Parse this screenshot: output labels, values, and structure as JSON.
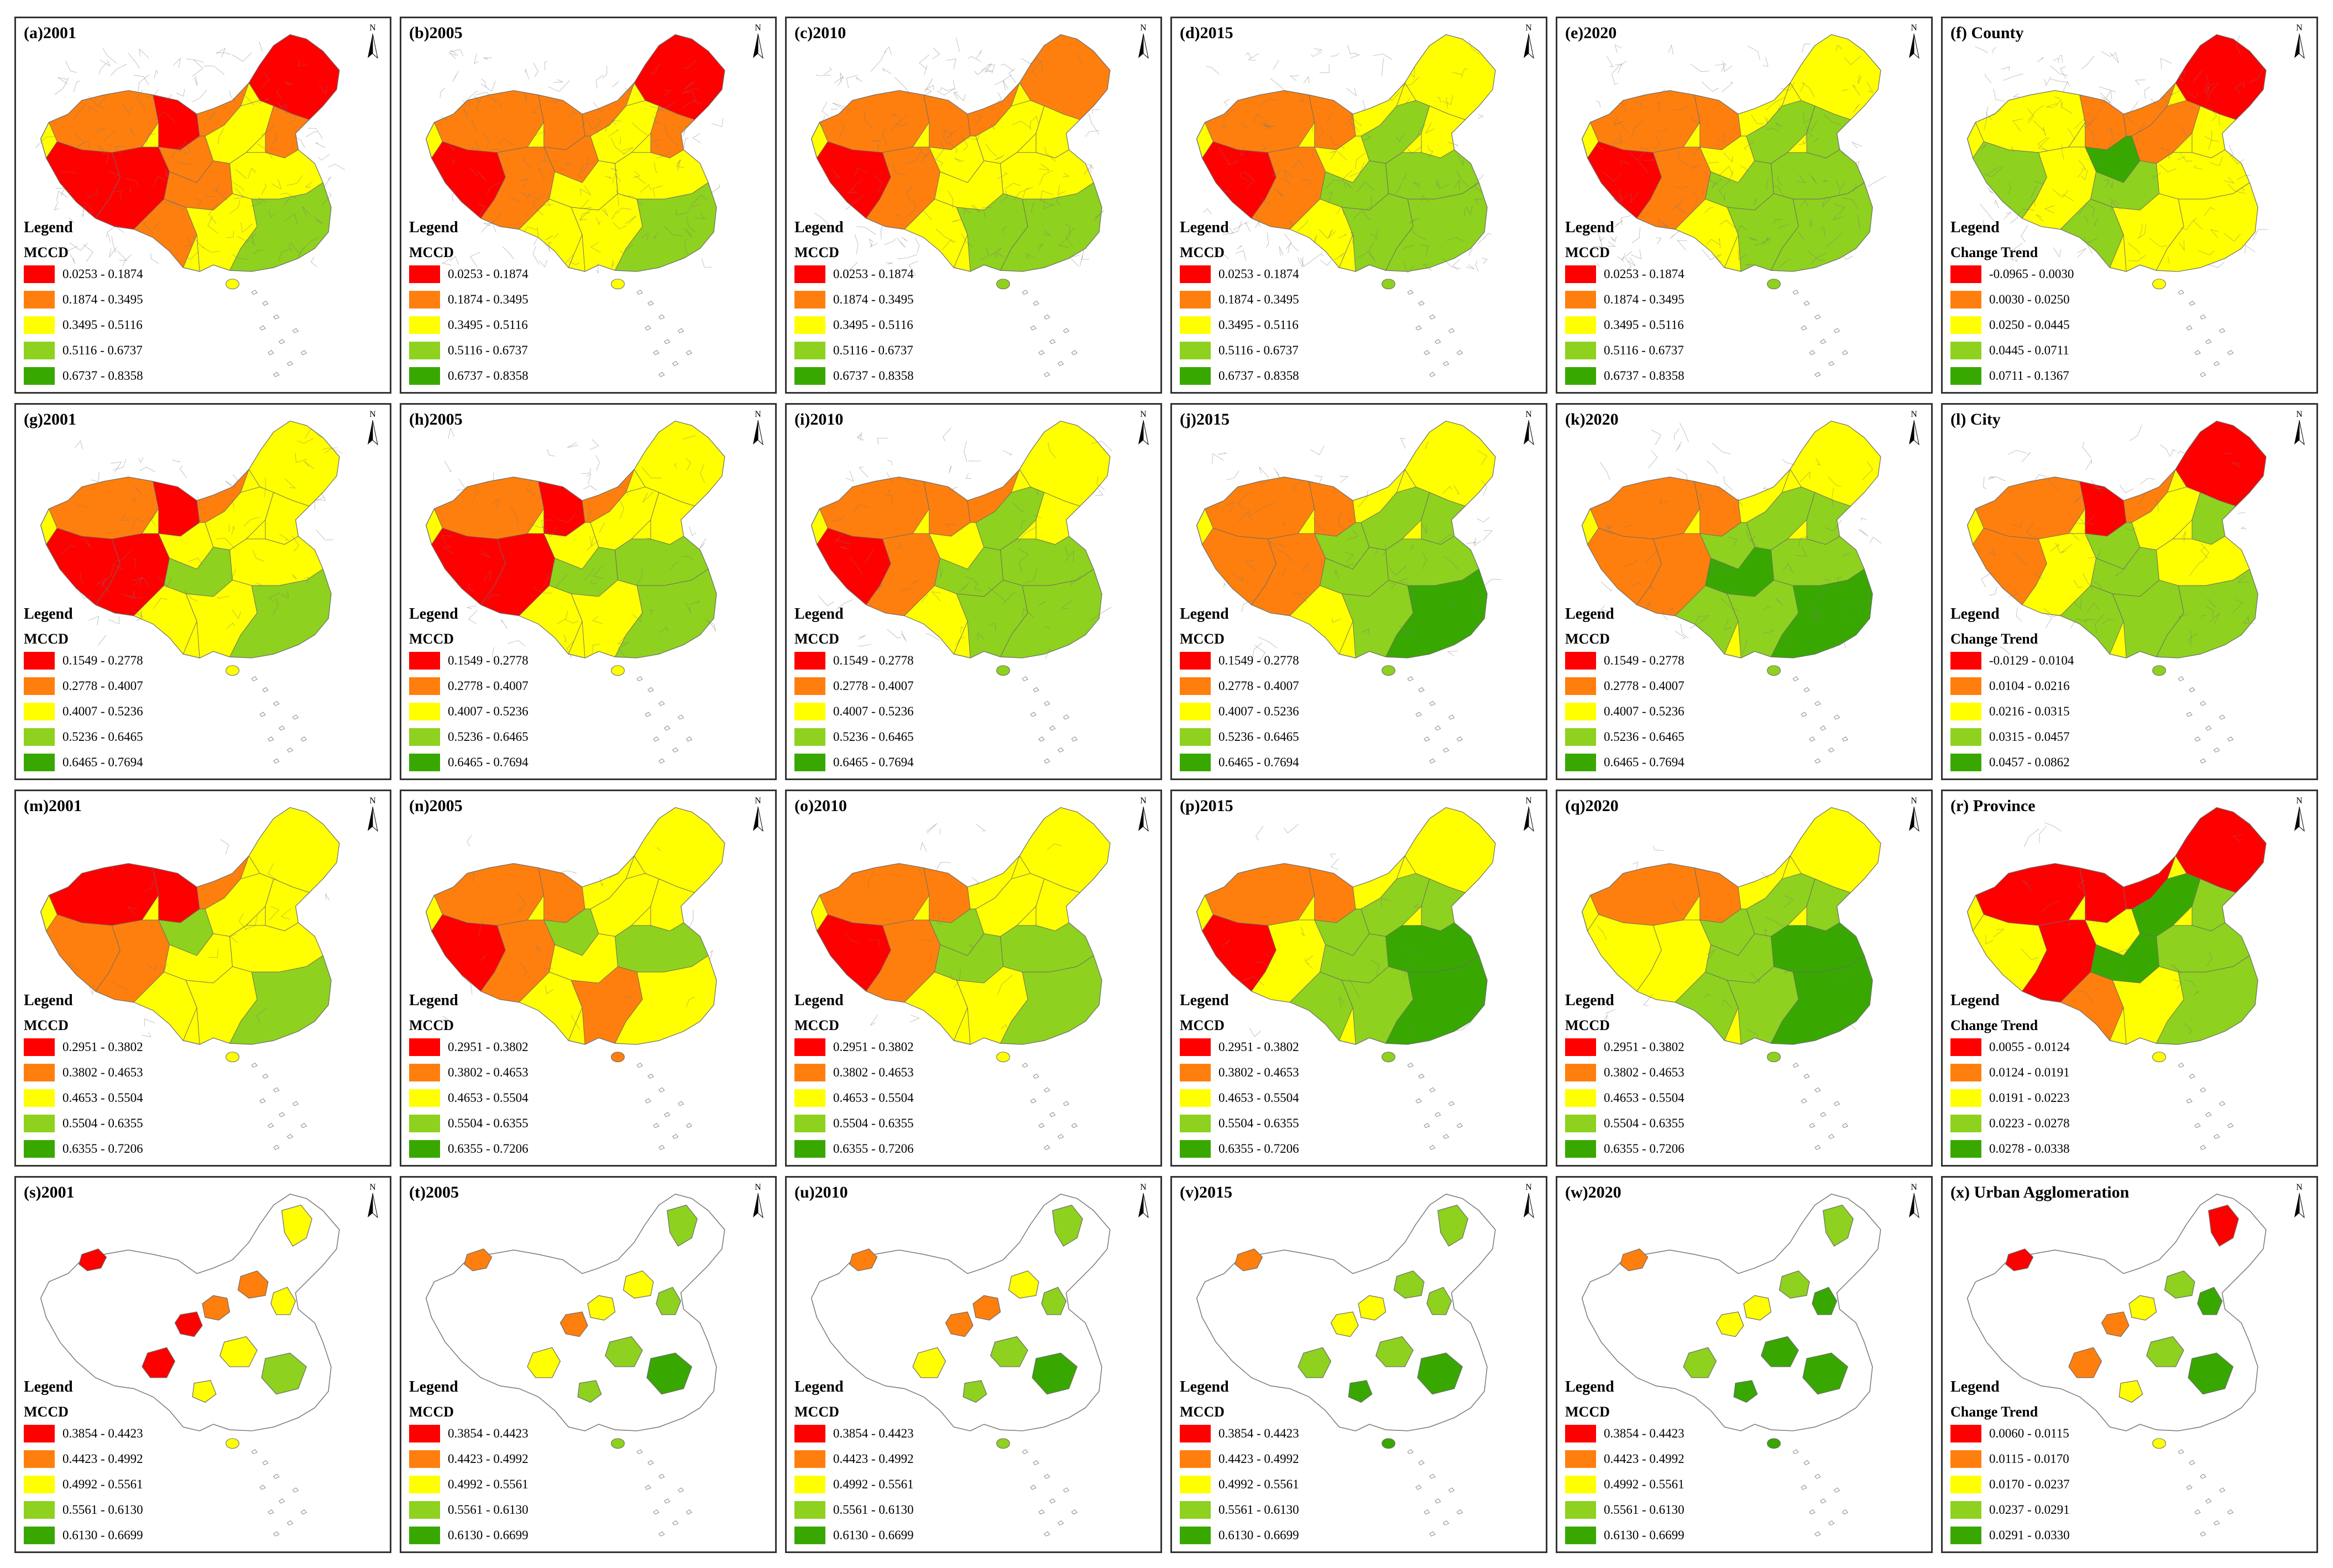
{
  "colors": [
    "#ff0000",
    "#ff7f0e",
    "#ffff00",
    "#8ed11f",
    "#38a800"
  ],
  "legend_title": "Legend",
  "north_label": "N",
  "rows": [
    {
      "level": "county",
      "legend_ranges": [
        "0.0253 - 0.1874",
        "0.1874 - 0.3495",
        "0.3495 - 0.5116",
        "0.5116 - 0.6737",
        "0.6737 - 0.8358"
      ],
      "trend_ranges": [
        "-0.0965 - 0.0030",
        "0.0030 - 0.0250",
        "0.0250 - 0.0445",
        "0.0445 - 0.0711",
        "0.0711 - 0.1367"
      ],
      "panels": [
        {
          "title": "(a)2001",
          "subtitle": "MCCD",
          "region_classes": [
            1,
            0,
            0,
            0,
            1,
            0,
            1,
            2,
            1,
            1,
            2,
            1,
            2,
            3
          ]
        },
        {
          "title": "(b)2005",
          "subtitle": "MCCD",
          "region_classes": [
            1,
            1,
            0,
            1,
            1,
            0,
            1,
            2,
            1,
            2,
            2,
            2,
            2,
            3
          ]
        },
        {
          "title": "(c)2010",
          "subtitle": "MCCD",
          "region_classes": [
            1,
            1,
            0,
            1,
            1,
            1,
            2,
            2,
            2,
            2,
            2,
            2,
            3,
            3
          ]
        },
        {
          "title": "(d)2015",
          "subtitle": "MCCD",
          "region_classes": [
            1,
            1,
            0,
            1,
            2,
            2,
            2,
            3,
            2,
            3,
            3,
            2,
            3,
            3
          ]
        },
        {
          "title": "(e)2020",
          "subtitle": "MCCD",
          "region_classes": [
            1,
            1,
            0,
            1,
            2,
            2,
            2,
            3,
            3,
            3,
            3,
            2,
            3,
            3
          ]
        },
        {
          "title": "(f) County",
          "subtitle": "Change Trend",
          "trend": true,
          "region_classes": [
            2,
            1,
            3,
            2,
            1,
            0,
            4,
            1,
            2,
            3,
            2,
            3,
            2,
            2
          ]
        }
      ]
    },
    {
      "level": "city",
      "legend_ranges": [
        "0.1549 - 0.2778",
        "0.2778 - 0.4007",
        "0.4007 - 0.5236",
        "0.5236 - 0.6465",
        "0.6465 - 0.7694"
      ],
      "trend_ranges": [
        "-0.0129 - 0.0104",
        "0.0104 - 0.0216",
        "0.0216 - 0.0315",
        "0.0315 - 0.0457",
        "0.0457 - 0.0862"
      ],
      "panels": [
        {
          "title": "(g)2001",
          "subtitle": "MCCD",
          "region_classes": [
            1,
            0,
            0,
            0,
            1,
            2,
            2,
            2,
            2,
            3,
            2,
            2,
            2,
            3
          ]
        },
        {
          "title": "(h)2005",
          "subtitle": "MCCD",
          "region_classes": [
            1,
            0,
            0,
            0,
            1,
            2,
            2,
            2,
            2,
            3,
            3,
            2,
            2,
            3
          ]
        },
        {
          "title": "(i)2010",
          "subtitle": "MCCD",
          "region_classes": [
            1,
            1,
            0,
            1,
            1,
            2,
            2,
            3,
            2,
            3,
            3,
            2,
            3,
            3
          ]
        },
        {
          "title": "(j)2015",
          "subtitle": "MCCD",
          "region_classes": [
            1,
            1,
            1,
            1,
            2,
            2,
            3,
            3,
            3,
            3,
            3,
            2,
            3,
            4
          ]
        },
        {
          "title": "(k)2020",
          "subtitle": "MCCD",
          "region_classes": [
            1,
            1,
            1,
            1,
            2,
            2,
            3,
            3,
            3,
            4,
            3,
            3,
            3,
            4
          ]
        },
        {
          "title": "(l) City",
          "subtitle": "Change Trend",
          "trend": true,
          "region_classes": [
            1,
            0,
            1,
            2,
            1,
            0,
            3,
            2,
            3,
            3,
            2,
            3,
            3,
            3
          ]
        }
      ]
    },
    {
      "level": "province",
      "legend_ranges": [
        "0.2951 - 0.3802",
        "0.3802 - 0.4653",
        "0.4653 - 0.5504",
        "0.5504 - 0.6355",
        "0.6355 - 0.7206"
      ],
      "trend_ranges": [
        "0.0055 - 0.0124",
        "0.0124 - 0.0191",
        "0.0191 - 0.0223",
        "0.0223 - 0.0278",
        "0.0278 - 0.0338"
      ],
      "panels": [
        {
          "title": "(m)2001",
          "subtitle": "MCCD",
          "region_classes": [
            0,
            0,
            1,
            1,
            1,
            2,
            3,
            2,
            2,
            2,
            2,
            2,
            2,
            3
          ]
        },
        {
          "title": "(n)2005",
          "subtitle": "MCCD",
          "region_classes": [
            1,
            1,
            0,
            1,
            2,
            2,
            3,
            2,
            2,
            2,
            3,
            2,
            1,
            2
          ]
        },
        {
          "title": "(o)2010",
          "subtitle": "MCCD",
          "region_classes": [
            1,
            1,
            0,
            1,
            2,
            2,
            3,
            2,
            2,
            3,
            3,
            2,
            2,
            3
          ]
        },
        {
          "title": "(p)2015",
          "subtitle": "MCCD",
          "region_classes": [
            1,
            1,
            0,
            2,
            2,
            2,
            3,
            3,
            3,
            3,
            4,
            3,
            3,
            4
          ]
        },
        {
          "title": "(q)2020",
          "subtitle": "MCCD",
          "region_classes": [
            1,
            1,
            2,
            2,
            2,
            2,
            3,
            3,
            3,
            3,
            4,
            3,
            3,
            4
          ]
        },
        {
          "title": "(r) Province",
          "subtitle": "Change Trend",
          "trend": true,
          "region_classes": [
            0,
            0,
            2,
            0,
            0,
            0,
            2,
            4,
            3,
            4,
            3,
            1,
            2,
            3
          ]
        }
      ]
    },
    {
      "level": "urban-agglomeration",
      "legend_ranges": [
        "0.3854 - 0.4423",
        "0.4423 - 0.4992",
        "0.4992 - 0.5561",
        "0.5561 - 0.6130",
        "0.6130 - 0.6699"
      ],
      "trend_ranges": [
        "0.0060 - 0.0115",
        "0.0115 - 0.0170",
        "0.0170 - 0.0237",
        "0.0237 - 0.0291",
        "0.0291 - 0.0330"
      ],
      "panels": [
        {
          "title": "(s)2001",
          "subtitle": "MCCD",
          "region_classes": [
            0,
            2,
            1,
            0,
            1,
            0,
            2,
            2,
            2,
            3
          ]
        },
        {
          "title": "(t)2005",
          "subtitle": "MCCD",
          "region_classes": [
            1,
            3,
            2,
            1,
            2,
            2,
            3,
            3,
            3,
            4
          ]
        },
        {
          "title": "(u)2010",
          "subtitle": "MCCD",
          "region_classes": [
            1,
            3,
            1,
            1,
            2,
            2,
            3,
            3,
            3,
            4
          ]
        },
        {
          "title": "(v)2015",
          "subtitle": "MCCD",
          "region_classes": [
            1,
            3,
            2,
            2,
            3,
            3,
            3,
            3,
            4,
            4
          ]
        },
        {
          "title": "(w)2020",
          "subtitle": "MCCD",
          "region_classes": [
            1,
            3,
            2,
            2,
            3,
            3,
            4,
            4,
            4,
            4
          ]
        },
        {
          "title": "(x) Urban Agglomeration",
          "subtitle": "Change Trend",
          "trend": true,
          "region_classes": [
            0,
            0,
            2,
            1,
            3,
            1,
            4,
            3,
            2,
            4
          ]
        }
      ]
    }
  ]
}
